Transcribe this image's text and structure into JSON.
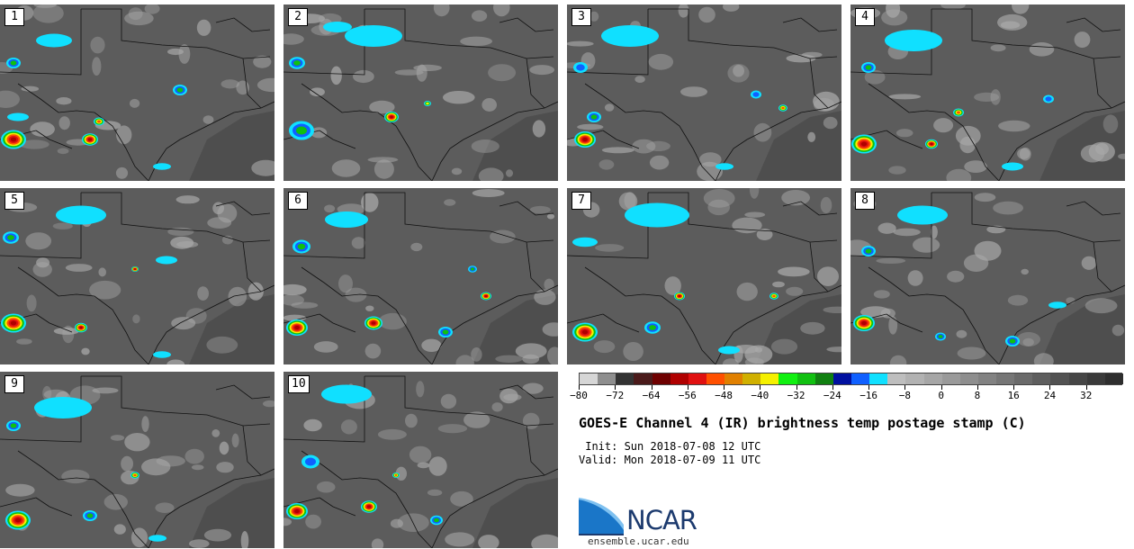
{
  "panels": [
    {
      "label": "1"
    },
    {
      "label": "2"
    },
    {
      "label": "3"
    },
    {
      "label": "4"
    },
    {
      "label": "5"
    },
    {
      "label": "6"
    },
    {
      "label": "7"
    },
    {
      "label": "8"
    },
    {
      "label": "9"
    },
    {
      "label": "10"
    }
  ],
  "colorbar": {
    "colors": [
      "#d6d6d6",
      "#8e8e8e",
      "#333333",
      "#4a1a1a",
      "#6e0000",
      "#b00000",
      "#e01010",
      "#ff5000",
      "#e08000",
      "#d0b000",
      "#f5f000",
      "#10f010",
      "#10c010",
      "#108010",
      "#0010a0",
      "#1060ff",
      "#10e0ff",
      "#bebebe",
      "#b2b2b2",
      "#a6a6a6",
      "#9a9a9a",
      "#8e8e8e",
      "#828282",
      "#767676",
      "#6a6a6a",
      "#5e5e5e",
      "#525252",
      "#464646",
      "#3a3a3a",
      "#2e2e2e"
    ],
    "tick_labels": [
      "−80",
      "−72",
      "−64",
      "−56",
      "−48",
      "−40",
      "−32",
      "−24",
      "−16",
      "−8",
      "0",
      "8",
      "16",
      "24",
      "32"
    ]
  },
  "title": "GOES-E Channel 4 (IR) brightness temp postage stamp (C)",
  "init": " Init: Sun 2018-07-08 12 UTC",
  "valid": "Valid: Mon 2018-07-09 11 UTC",
  "logo_text": "NCAR",
  "url": "ensemble.ucar.edu",
  "icons": {
    "map_panel": "ir-satellite-map",
    "logo": "ncar-logo"
  },
  "storm_colors": {
    "cyan": "#10e0ff",
    "blue": "#1060ff",
    "green": "#10c010",
    "yellow": "#f5f000",
    "orange": "#ff5000",
    "red": "#e01010",
    "darkred": "#b00000",
    "lightcloud": "#a8a8a8"
  }
}
